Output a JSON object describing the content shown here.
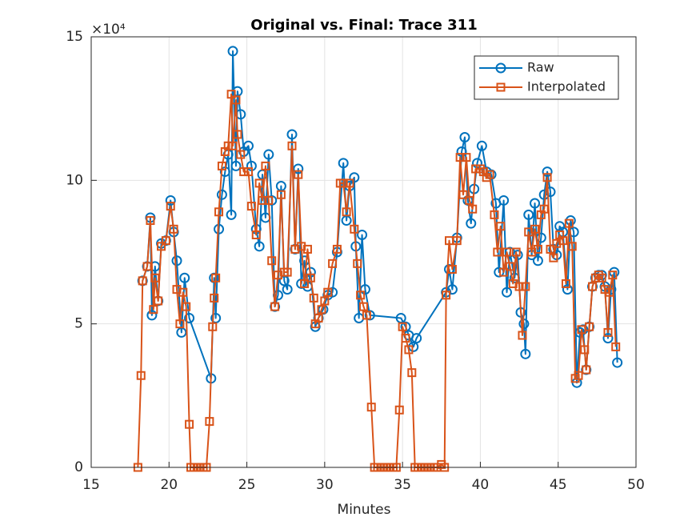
{
  "chart_data": {
    "type": "line",
    "title": "Original vs. Final: Trace 311",
    "x_label": "Minutes",
    "y_exponent_label": "×10⁴",
    "xlim": [
      15,
      50
    ],
    "xticks": [
      15,
      20,
      25,
      30,
      35,
      40,
      45,
      50
    ],
    "ylim": [
      0,
      150000
    ],
    "yticks": [
      0,
      {
        "value": 50000,
        "label": "5"
      },
      {
        "value": 100000,
        "label": "10"
      },
      {
        "value": 150000,
        "label": "15"
      }
    ],
    "grid": true,
    "legend": "northeast",
    "series": [
      {
        "name": "Raw",
        "color": "#0072BD",
        "marker": "circle",
        "x": [
          18.3,
          18.6,
          18.8,
          18.9,
          19.1,
          19.3,
          19.5,
          19.8,
          20.1,
          20.3,
          20.5,
          20.8,
          21.0,
          21.3,
          22.7,
          22.9,
          23.0,
          23.2,
          23.4,
          23.6,
          23.8,
          24.0,
          24.1,
          24.3,
          24.4,
          24.6,
          24.8,
          25.1,
          25.3,
          25.6,
          25.8,
          26.0,
          26.2,
          26.4,
          26.6,
          26.8,
          27.0,
          27.2,
          27.4,
          27.6,
          27.9,
          28.1,
          28.3,
          28.5,
          28.7,
          28.9,
          29.1,
          29.4,
          29.6,
          29.9,
          30.2,
          30.5,
          30.8,
          31.2,
          31.4,
          31.6,
          31.9,
          32.0,
          32.2,
          32.4,
          32.6,
          32.9,
          34.9,
          35.2,
          35.4,
          35.7,
          35.9,
          37.8,
          38.0,
          38.2,
          38.5,
          38.8,
          39.0,
          39.2,
          39.4,
          39.6,
          39.8,
          40.1,
          40.4,
          40.7,
          41.0,
          41.2,
          41.5,
          41.7,
          41.9,
          42.2,
          42.4,
          42.6,
          42.8,
          42.9,
          43.1,
          43.3,
          43.5,
          43.7,
          43.9,
          44.1,
          44.3,
          44.5,
          44.7,
          44.9,
          45.1,
          45.3,
          45.6,
          45.8,
          46.0,
          46.2,
          46.4,
          46.6,
          46.8,
          47.0,
          47.2,
          47.4,
          47.6,
          47.8,
          48.0,
          48.2,
          48.4,
          48.6,
          48.8
        ],
        "values": [
          65000,
          70000,
          87000,
          53000,
          70000,
          58000,
          78000,
          79000,
          93000,
          82000,
          72000,
          47000,
          66000,
          52000,
          31000,
          66000,
          52000,
          83000,
          95000,
          103000,
          109000,
          88000,
          145000,
          105000,
          131000,
          123000,
          110000,
          112000,
          105000,
          83000,
          77000,
          102000,
          87000,
          109000,
          93000,
          56000,
          60000,
          98000,
          65000,
          62000,
          116000,
          76000,
          104000,
          64000,
          72000,
          63000,
          68000,
          49000,
          52000,
          55000,
          60000,
          61000,
          75000,
          106000,
          86000,
          98000,
          101000,
          77000,
          52000,
          81000,
          62000,
          53000,
          52000,
          49000,
          46000,
          42000,
          45000,
          61000,
          69000,
          62000,
          80000,
          110000,
          115000,
          93000,
          85000,
          97000,
          106000,
          112000,
          103000,
          102000,
          92000,
          68000,
          93000,
          61000,
          75000,
          66000,
          74000,
          54000,
          50000,
          39500,
          88000,
          74000,
          92000,
          72000,
          80000,
          95000,
          103000,
          96000,
          76000,
          74000,
          84000,
          82000,
          62000,
          86000,
          82000,
          29500,
          47000,
          48000,
          34000,
          49000,
          63000,
          66000,
          67000,
          67000,
          63000,
          45000,
          62000,
          68000,
          36500
        ]
      },
      {
        "name": "Interpolated",
        "color": "#D95319",
        "marker": "square",
        "x": [
          18.0,
          18.2,
          18.3,
          18.6,
          18.8,
          19.0,
          19.1,
          19.3,
          19.5,
          19.8,
          20.1,
          20.3,
          20.5,
          20.7,
          20.9,
          21.1,
          21.3,
          21.4,
          21.6,
          21.8,
          22.0,
          22.2,
          22.4,
          22.6,
          22.8,
          22.9,
          23.0,
          23.2,
          23.4,
          23.6,
          23.8,
          24.0,
          24.1,
          24.3,
          24.4,
          24.6,
          24.8,
          25.1,
          25.3,
          25.6,
          25.8,
          26.0,
          26.2,
          26.4,
          26.6,
          26.8,
          27.0,
          27.2,
          27.4,
          27.6,
          27.9,
          28.1,
          28.3,
          28.5,
          28.7,
          28.9,
          29.1,
          29.3,
          29.4,
          29.6,
          29.8,
          30.0,
          30.2,
          30.5,
          30.8,
          31.0,
          31.2,
          31.4,
          31.6,
          31.9,
          32.1,
          32.3,
          32.5,
          32.7,
          33.0,
          33.2,
          33.4,
          33.6,
          33.8,
          34.0,
          34.2,
          34.4,
          34.6,
          34.8,
          35.0,
          35.2,
          35.4,
          35.6,
          35.8,
          36.0,
          36.2,
          36.4,
          36.6,
          36.8,
          37.0,
          37.2,
          37.5,
          37.7,
          37.8,
          38.0,
          38.2,
          38.5,
          38.7,
          38.9,
          39.1,
          39.3,
          39.5,
          39.7,
          40.0,
          40.2,
          40.4,
          40.6,
          40.9,
          41.1,
          41.3,
          41.5,
          41.7,
          41.9,
          42.1,
          42.3,
          42.5,
          42.7,
          42.9,
          43.1,
          43.3,
          43.5,
          43.7,
          43.9,
          44.1,
          44.3,
          44.5,
          44.7,
          44.9,
          45.1,
          45.3,
          45.5,
          45.7,
          45.9,
          46.1,
          46.3,
          46.5,
          46.7,
          46.8,
          47.0,
          47.2,
          47.4,
          47.6,
          47.8,
          48.0,
          48.2,
          48.3,
          48.5,
          48.7
        ],
        "values": [
          0,
          32000,
          65000,
          70000,
          86000,
          55000,
          66000,
          58000,
          77000,
          79000,
          91000,
          83000,
          62000,
          50000,
          61000,
          56000,
          15000,
          0,
          0,
          0,
          0,
          0,
          0,
          16000,
          49000,
          59000,
          66000,
          89000,
          105000,
          110000,
          112000,
          130000,
          112000,
          128000,
          116000,
          109000,
          103000,
          103000,
          91000,
          81000,
          99000,
          93000,
          105000,
          93000,
          72000,
          56000,
          67000,
          95000,
          68000,
          68000,
          112000,
          76000,
          102000,
          77000,
          64000,
          76000,
          66000,
          59000,
          50000,
          52000,
          55000,
          58000,
          61000,
          71000,
          76000,
          99000,
          99000,
          89000,
          99000,
          83000,
          71000,
          60000,
          56000,
          53000,
          21000,
          0,
          0,
          0,
          0,
          0,
          0,
          0,
          0,
          20000,
          49000,
          45000,
          41000,
          33000,
          0,
          0,
          0,
          0,
          0,
          0,
          0,
          0,
          1000,
          0,
          60000,
          79000,
          69000,
          79000,
          108000,
          95000,
          108000,
          93000,
          90000,
          104000,
          104000,
          103000,
          101000,
          102000,
          88000,
          75000,
          84000,
          68000,
          75000,
          70000,
          64000,
          75000,
          63000,
          46000,
          63000,
          82000,
          75000,
          83000,
          76000,
          88000,
          90000,
          101000,
          76000,
          73000,
          78000,
          81000,
          79000,
          64000,
          85000,
          77000,
          31000,
          32000,
          48000,
          41000,
          34000,
          49000,
          63000,
          66000,
          67000,
          66000,
          62000,
          47000,
          61000,
          67000,
          42000
        ]
      }
    ]
  }
}
